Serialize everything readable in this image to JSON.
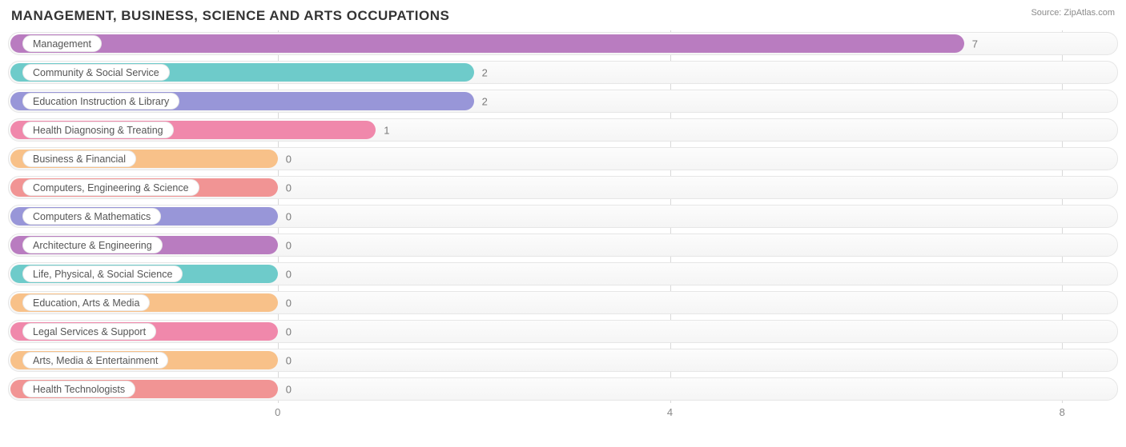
{
  "title": "MANAGEMENT, BUSINESS, SCIENCE AND ARTS OCCUPATIONS",
  "source_label": "Source: ZipAtlas.com",
  "chart": {
    "type": "bar-horizontal",
    "background_color": "#ffffff",
    "track_border_color": "#e6e6e6",
    "grid_color": "#d9d9d9",
    "xlim": [
      -0.4,
      8.4
    ],
    "x_ticks": [
      0,
      4,
      8
    ],
    "zero_offset_pct": 24.3,
    "full_width_pct": 98.5,
    "bars": [
      {
        "label": "Management",
        "value": 7,
        "color": "#b97cc0"
      },
      {
        "label": "Community & Social Service",
        "value": 2,
        "color": "#6ecbca"
      },
      {
        "label": "Education Instruction & Library",
        "value": 2,
        "color": "#9896d8"
      },
      {
        "label": "Health Diagnosing & Treating",
        "value": 1,
        "color": "#f088ab"
      },
      {
        "label": "Business & Financial",
        "value": 0,
        "color": "#f8c189"
      },
      {
        "label": "Computers, Engineering & Science",
        "value": 0,
        "color": "#f19494"
      },
      {
        "label": "Computers & Mathematics",
        "value": 0,
        "color": "#9896d8"
      },
      {
        "label": "Architecture & Engineering",
        "value": 0,
        "color": "#b97cc0"
      },
      {
        "label": "Life, Physical, & Social Science",
        "value": 0,
        "color": "#6ecbca"
      },
      {
        "label": "Education, Arts & Media",
        "value": 0,
        "color": "#f8c189"
      },
      {
        "label": "Legal Services & Support",
        "value": 0,
        "color": "#f088ab"
      },
      {
        "label": "Arts, Media & Entertainment",
        "value": 0,
        "color": "#f8c189"
      },
      {
        "label": "Health Technologists",
        "value": 0,
        "color": "#f19494"
      }
    ]
  }
}
